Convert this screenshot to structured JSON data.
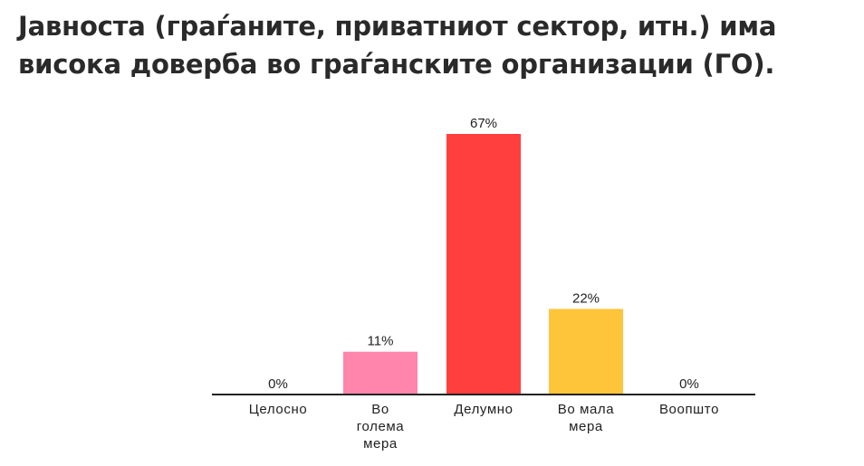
{
  "title": {
    "line1": "Јавноста (граѓаните, приватниот сектор, итн.) има",
    "line2": "висока доверба во граѓанските организации (ГО)."
  },
  "chart_data": {
    "type": "bar",
    "title": "Јавноста (граѓаните, приватниот сектор, итн.) има висока доверба во граѓанските организации (ГО).",
    "categories": [
      [
        "Целосно"
      ],
      [
        "Во",
        "голема",
        "мера"
      ],
      [
        "Делумно"
      ],
      [
        "Во мала",
        "мера"
      ],
      [
        "Воопшто"
      ]
    ],
    "values": [
      0,
      11,
      67,
      22,
      0
    ],
    "value_labels": [
      "0%",
      "11%",
      "67%",
      "22%",
      "0%"
    ],
    "colors": [
      "#1f9ad6",
      "#ff85ad",
      "#ff3f3d",
      "#ffc53a",
      "#8a8a8a"
    ],
    "ylim": [
      0,
      67
    ],
    "grid": false,
    "xlabel": "",
    "ylabel": ""
  }
}
